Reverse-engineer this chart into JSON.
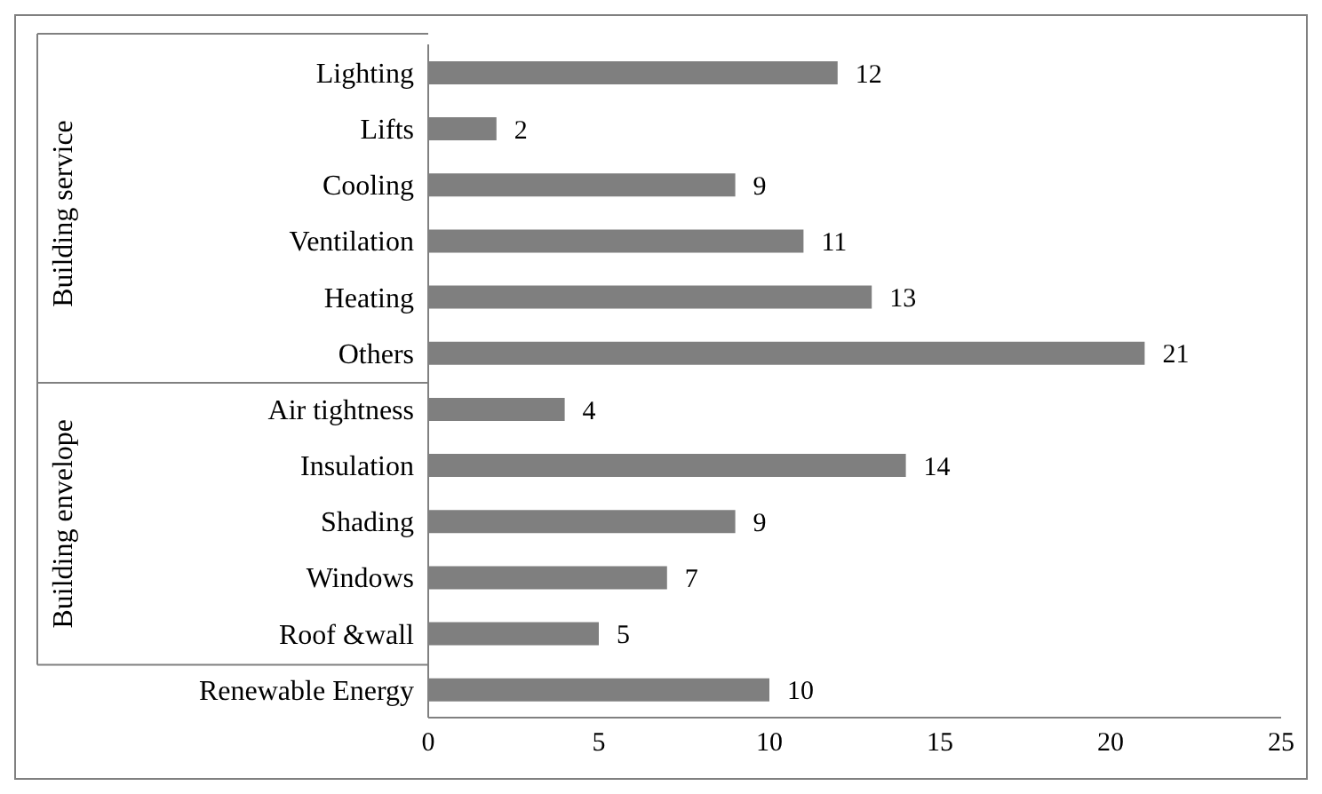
{
  "chart_data": {
    "type": "bar",
    "orientation": "horizontal",
    "categories": [
      "Lighting",
      "Lifts",
      "Cooling",
      "Ventilation",
      "Heating",
      "Others",
      "Air tightness",
      "Insulation",
      "Shading",
      "Windows",
      "Roof &wall",
      "Renewable Energy"
    ],
    "values": [
      12,
      2,
      9,
      11,
      13,
      21,
      4,
      14,
      9,
      7,
      5,
      10
    ],
    "color": "#7f7f7f",
    "xlim": [
      0,
      25
    ],
    "xticks": [
      0,
      5,
      10,
      15,
      20,
      25
    ],
    "data_labels": true,
    "annotations": [
      "Building service",
      "Building envelope"
    ]
  }
}
